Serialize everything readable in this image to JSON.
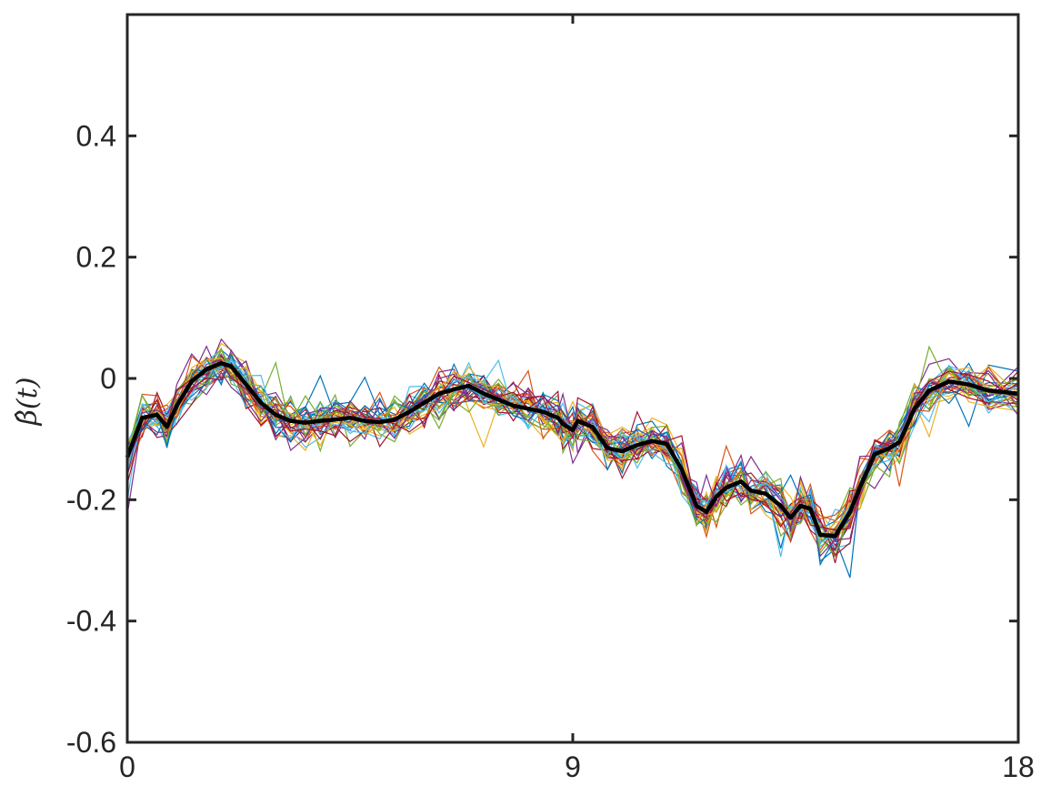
{
  "chart_data": {
    "type": "line",
    "title": "",
    "xlabel": "",
    "ylabel": "β̂(t)",
    "xlim": [
      0,
      18
    ],
    "ylim": [
      -0.6,
      0.6
    ],
    "x_ticks": [
      0,
      9,
      18
    ],
    "x_tick_labels": [
      "0",
      "9",
      "18"
    ],
    "y_ticks": [
      -0.6,
      -0.4,
      -0.2,
      0,
      0.2,
      0.4
    ],
    "y_tick_labels": [
      "-0.6",
      "-0.4",
      "-0.2",
      "0",
      "0.2",
      "0.4"
    ],
    "grid": false,
    "legend": "none",
    "x": [
      0,
      0.3,
      0.6,
      0.8,
      1.0,
      1.3,
      1.6,
      1.9,
      2.1,
      2.4,
      2.7,
      3.0,
      3.3,
      3.6,
      3.9,
      4.2,
      4.5,
      4.8,
      5.1,
      5.4,
      5.7,
      6.0,
      6.3,
      6.6,
      6.9,
      7.2,
      7.5,
      7.8,
      8.1,
      8.4,
      8.7,
      8.8,
      9.0,
      9.1,
      9.4,
      9.7,
      10.0,
      10.3,
      10.6,
      10.9,
      11.2,
      11.5,
      11.7,
      11.9,
      12.1,
      12.4,
      12.6,
      12.9,
      13.2,
      13.4,
      13.6,
      13.8,
      14.0,
      14.3,
      14.6,
      14.8,
      15.1,
      15.4,
      15.6,
      15.9,
      16.2,
      16.6,
      17.0,
      17.4,
      18.0
    ],
    "mean_series": {
      "name": "",
      "color": "#000000",
      "values": [
        -0.13,
        -0.065,
        -0.06,
        -0.08,
        -0.045,
        -0.005,
        0.015,
        0.025,
        0.02,
        -0.01,
        -0.04,
        -0.06,
        -0.07,
        -0.073,
        -0.07,
        -0.068,
        -0.065,
        -0.07,
        -0.072,
        -0.068,
        -0.055,
        -0.04,
        -0.025,
        -0.018,
        -0.012,
        -0.025,
        -0.035,
        -0.045,
        -0.05,
        -0.055,
        -0.065,
        -0.075,
        -0.085,
        -0.07,
        -0.08,
        -0.115,
        -0.12,
        -0.11,
        -0.103,
        -0.108,
        -0.15,
        -0.21,
        -0.22,
        -0.195,
        -0.18,
        -0.17,
        -0.185,
        -0.19,
        -0.21,
        -0.23,
        -0.21,
        -0.215,
        -0.258,
        -0.26,
        -0.22,
        -0.18,
        -0.125,
        -0.115,
        -0.105,
        -0.05,
        -0.02,
        -0.005,
        -0.01,
        -0.02,
        -0.025
      ]
    },
    "replicate_colors": [
      "#0072BD",
      "#D95319",
      "#EDB120",
      "#7E2F8E",
      "#77AC30",
      "#4DBEEE",
      "#A2142F"
    ],
    "replicate_count": 35
  }
}
